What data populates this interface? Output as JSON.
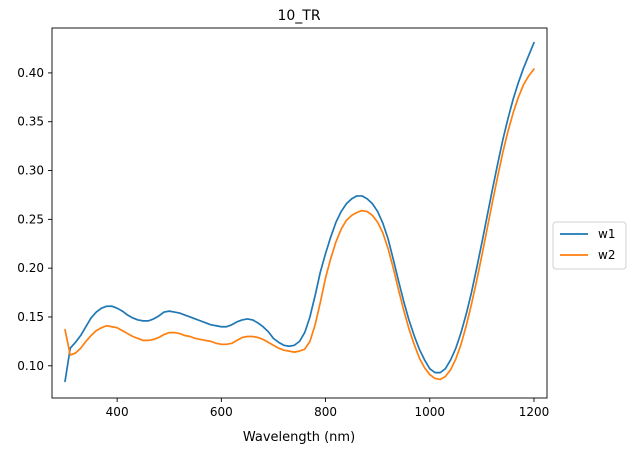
{
  "chart_data": {
    "type": "line",
    "title": "10_TR",
    "xlabel": "Wavelength (nm)",
    "ylabel": "",
    "xlim": [
      275,
      1225
    ],
    "ylim": [
      0.067,
      0.446
    ],
    "xticks": [
      400,
      600,
      800,
      1000,
      1200
    ],
    "yticks": [
      0.1,
      0.15,
      0.2,
      0.25,
      0.3,
      0.35,
      0.4
    ],
    "xtick_labels": [
      "400",
      "600",
      "800",
      "1000",
      "1200"
    ],
    "ytick_labels": [
      "0.10",
      "0.15",
      "0.20",
      "0.25",
      "0.30",
      "0.35",
      "0.40"
    ],
    "grid": false,
    "legend_position": "outside-right",
    "series": [
      {
        "name": "w1",
        "color": "#1f77b4",
        "x": [
          300,
          310,
          320,
          330,
          340,
          350,
          360,
          370,
          380,
          390,
          400,
          410,
          420,
          430,
          440,
          450,
          460,
          470,
          480,
          490,
          500,
          510,
          520,
          530,
          540,
          550,
          560,
          570,
          580,
          590,
          600,
          610,
          620,
          630,
          640,
          650,
          660,
          670,
          680,
          690,
          700,
          710,
          720,
          730,
          740,
          750,
          760,
          770,
          780,
          790,
          800,
          810,
          820,
          830,
          840,
          850,
          860,
          870,
          880,
          890,
          900,
          910,
          920,
          930,
          940,
          950,
          960,
          970,
          980,
          990,
          1000,
          1010,
          1020,
          1030,
          1040,
          1050,
          1060,
          1070,
          1080,
          1090,
          1100,
          1110,
          1120,
          1130,
          1140,
          1150,
          1160,
          1170,
          1180,
          1190,
          1200
        ],
        "values": [
          0.084,
          0.118,
          0.124,
          0.131,
          0.14,
          0.149,
          0.155,
          0.159,
          0.161,
          0.161,
          0.159,
          0.156,
          0.152,
          0.149,
          0.147,
          0.146,
          0.146,
          0.148,
          0.151,
          0.155,
          0.156,
          0.155,
          0.154,
          0.152,
          0.15,
          0.148,
          0.146,
          0.144,
          0.142,
          0.141,
          0.14,
          0.14,
          0.142,
          0.145,
          0.147,
          0.148,
          0.147,
          0.144,
          0.14,
          0.135,
          0.128,
          0.124,
          0.121,
          0.12,
          0.121,
          0.125,
          0.134,
          0.15,
          0.172,
          0.196,
          0.215,
          0.232,
          0.247,
          0.258,
          0.266,
          0.271,
          0.274,
          0.274,
          0.271,
          0.266,
          0.258,
          0.246,
          0.23,
          0.209,
          0.187,
          0.166,
          0.147,
          0.131,
          0.117,
          0.106,
          0.097,
          0.093,
          0.093,
          0.097,
          0.106,
          0.118,
          0.134,
          0.153,
          0.175,
          0.2,
          0.226,
          0.253,
          0.28,
          0.306,
          0.331,
          0.353,
          0.373,
          0.39,
          0.405,
          0.418,
          0.431
        ]
      },
      {
        "name": "w2",
        "color": "#ff7f0e",
        "x": [
          300,
          310,
          320,
          330,
          340,
          350,
          360,
          370,
          380,
          390,
          400,
          410,
          420,
          430,
          440,
          450,
          460,
          470,
          480,
          490,
          500,
          510,
          520,
          530,
          540,
          550,
          560,
          570,
          580,
          590,
          600,
          610,
          620,
          630,
          640,
          650,
          660,
          670,
          680,
          690,
          700,
          710,
          720,
          730,
          740,
          750,
          760,
          770,
          780,
          790,
          800,
          810,
          820,
          830,
          840,
          850,
          860,
          870,
          880,
          890,
          900,
          910,
          920,
          930,
          940,
          950,
          960,
          970,
          980,
          990,
          1000,
          1010,
          1020,
          1030,
          1040,
          1050,
          1060,
          1070,
          1080,
          1090,
          1100,
          1110,
          1120,
          1130,
          1140,
          1150,
          1160,
          1170,
          1180,
          1190,
          1200
        ],
        "values": [
          0.137,
          0.111,
          0.113,
          0.118,
          0.125,
          0.131,
          0.136,
          0.139,
          0.141,
          0.14,
          0.139,
          0.136,
          0.133,
          0.13,
          0.128,
          0.126,
          0.126,
          0.127,
          0.129,
          0.132,
          0.134,
          0.134,
          0.133,
          0.131,
          0.13,
          0.128,
          0.127,
          0.126,
          0.125,
          0.123,
          0.122,
          0.122,
          0.123,
          0.126,
          0.129,
          0.13,
          0.13,
          0.129,
          0.127,
          0.124,
          0.121,
          0.118,
          0.116,
          0.115,
          0.114,
          0.115,
          0.117,
          0.125,
          0.142,
          0.165,
          0.19,
          0.21,
          0.227,
          0.24,
          0.249,
          0.254,
          0.257,
          0.259,
          0.258,
          0.254,
          0.247,
          0.236,
          0.22,
          0.2,
          0.178,
          0.157,
          0.138,
          0.122,
          0.108,
          0.098,
          0.091,
          0.087,
          0.086,
          0.089,
          0.096,
          0.107,
          0.122,
          0.141,
          0.163,
          0.187,
          0.213,
          0.24,
          0.267,
          0.293,
          0.318,
          0.34,
          0.359,
          0.375,
          0.388,
          0.397,
          0.404
        ]
      }
    ]
  }
}
